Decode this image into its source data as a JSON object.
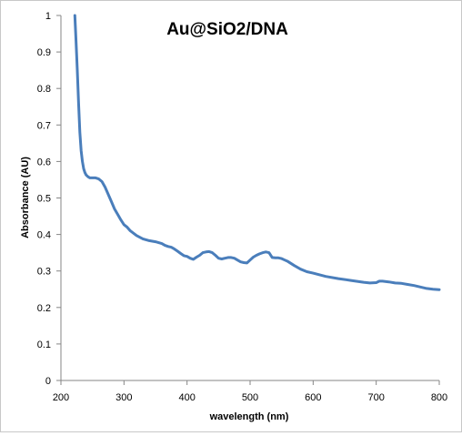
{
  "chart_data": {
    "type": "line",
    "title": "Au@SiO2/DNA",
    "xlabel": "wavelength (nm)",
    "ylabel": "Absorbance (AU)",
    "xlim": [
      200,
      800
    ],
    "ylim": [
      0,
      1
    ],
    "x_ticks": [
      200,
      300,
      400,
      500,
      600,
      700,
      800
    ],
    "y_ticks": [
      0,
      0.1,
      0.2,
      0.3,
      0.4,
      0.5,
      0.6,
      0.7,
      0.8,
      0.9,
      1
    ],
    "grid": false,
    "legend": "none",
    "line_color": "#4a7ebb",
    "series": [
      {
        "x": [
          222,
          224,
          226,
          228,
          230,
          232,
          234,
          236,
          238,
          240,
          243,
          246,
          250,
          255,
          260,
          265,
          270,
          275,
          280,
          285,
          290,
          295,
          300,
          305,
          310,
          320,
          330,
          340,
          350,
          360,
          365,
          370,
          375,
          380,
          385,
          390,
          395,
          400,
          405,
          410,
          415,
          420,
          425,
          430,
          435,
          440,
          445,
          450,
          455,
          460,
          465,
          470,
          475,
          480,
          485,
          490,
          495,
          500,
          505,
          510,
          515,
          520,
          525,
          530,
          535,
          540,
          545,
          550,
          555,
          560,
          570,
          580,
          590,
          600,
          620,
          640,
          660,
          680,
          690,
          700,
          705,
          710,
          720,
          730,
          740,
          750,
          760,
          770,
          780,
          790,
          800
        ],
        "y": [
          1.0,
          0.93,
          0.85,
          0.76,
          0.68,
          0.63,
          0.6,
          0.58,
          0.57,
          0.563,
          0.558,
          0.555,
          0.555,
          0.555,
          0.552,
          0.545,
          0.53,
          0.51,
          0.49,
          0.47,
          0.455,
          0.44,
          0.427,
          0.42,
          0.41,
          0.397,
          0.388,
          0.383,
          0.38,
          0.375,
          0.37,
          0.367,
          0.365,
          0.36,
          0.354,
          0.348,
          0.342,
          0.34,
          0.335,
          0.332,
          0.338,
          0.343,
          0.35,
          0.352,
          0.353,
          0.35,
          0.343,
          0.335,
          0.333,
          0.335,
          0.337,
          0.337,
          0.335,
          0.33,
          0.325,
          0.323,
          0.322,
          0.33,
          0.338,
          0.343,
          0.347,
          0.35,
          0.352,
          0.35,
          0.337,
          0.336,
          0.336,
          0.334,
          0.33,
          0.326,
          0.315,
          0.305,
          0.298,
          0.294,
          0.285,
          0.279,
          0.274,
          0.269,
          0.267,
          0.268,
          0.272,
          0.272,
          0.27,
          0.267,
          0.266,
          0.263,
          0.26,
          0.256,
          0.252,
          0.25,
          0.249
        ]
      }
    ]
  }
}
